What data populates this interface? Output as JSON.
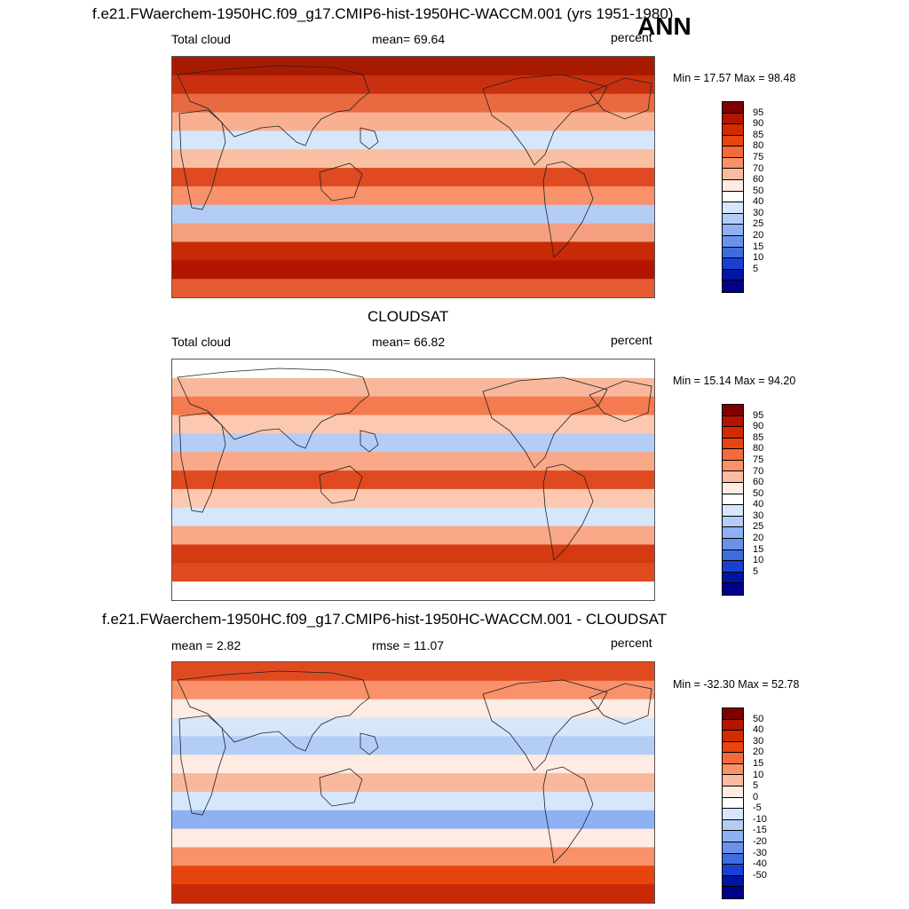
{
  "season": "ANN",
  "panels": [
    {
      "title": "f.e21.FWaerchem-1950HC.f09_g17.CMIP6-hist-1950HC-WACCM.001 (yrs 1951-1980)",
      "left_label": "Total cloud",
      "center_label": "mean=  69.64",
      "right_label": "percent",
      "minmax": "Min =  17.57 Max =  98.48",
      "colorbar": {
        "labels": [
          "95",
          "90",
          "85",
          "80",
          "75",
          "70",
          "60",
          "50",
          "40",
          "30",
          "25",
          "20",
          "15",
          "10",
          "5"
        ],
        "colors": [
          "#7f0000",
          "#b21400",
          "#d42a00",
          "#e8440e",
          "#f46a3a",
          "#f9916a",
          "#fcbba1",
          "#feebe2",
          "#ffffff",
          "#d6e6fb",
          "#b3cdf7",
          "#8db1f2",
          "#6a92ea",
          "#3e6de0",
          "#1a40d2",
          "#0015a6",
          "#00008b"
        ]
      },
      "map_bands": [
        "#a81a00",
        "#c93010",
        "#e86a40",
        "#f8b090",
        "#d6e6fb",
        "#f8c0a0",
        "#e04a20",
        "#f9916a",
        "#b3cdf7",
        "#f4a080",
        "#c82a08",
        "#b21400",
        "#e55a30"
      ]
    },
    {
      "title": "CLOUDSAT",
      "left_label": "Total cloud",
      "center_label": "mean=  66.82",
      "right_label": "percent",
      "minmax": "Min =  15.14 Max =  94.20",
      "colorbar": {
        "labels": [
          "95",
          "90",
          "85",
          "80",
          "75",
          "70",
          "60",
          "50",
          "40",
          "30",
          "25",
          "20",
          "15",
          "10",
          "5"
        ],
        "colors": [
          "#7f0000",
          "#b21400",
          "#d42a00",
          "#e8440e",
          "#f46a3a",
          "#f9916a",
          "#fcbba1",
          "#feebe2",
          "#ffffff",
          "#d6e6fb",
          "#b3cdf7",
          "#8db1f2",
          "#6a92ea",
          "#3e6de0",
          "#1a40d2",
          "#0015a6",
          "#00008b"
        ]
      },
      "map_bands": [
        "#ffffff",
        "#f9b89c",
        "#f47a50",
        "#fcc8b0",
        "#b3cdf7",
        "#f9a888",
        "#e04a20",
        "#fcc8b0",
        "#d6e6fb",
        "#f9a888",
        "#d63a10",
        "#e04a20",
        "#ffffff"
      ]
    },
    {
      "title": "f.e21.FWaerchem-1950HC.f09_g17.CMIP6-hist-1950HC-WACCM.001 - CLOUDSAT",
      "left_label": "mean =   2.82",
      "center_label": "rmse =  11.07",
      "right_label": "percent",
      "minmax": "Min = -32.30 Max =  52.78",
      "colorbar": {
        "labels": [
          "50",
          "40",
          "30",
          "20",
          "15",
          "10",
          "5",
          "0",
          "-5",
          "-10",
          "-15",
          "-20",
          "-30",
          "-40",
          "-50"
        ],
        "colors": [
          "#7f0000",
          "#b21400",
          "#d42a00",
          "#e8440e",
          "#f46a3a",
          "#f9916a",
          "#fcbba1",
          "#feebe2",
          "#ffffff",
          "#d6e6fb",
          "#b3cdf7",
          "#8db1f2",
          "#6a92ea",
          "#3e6de0",
          "#1a40d2",
          "#0015a6",
          "#00008b"
        ]
      },
      "map_bands": [
        "#e04a20",
        "#f9916a",
        "#feebe2",
        "#d6e6fb",
        "#b3cdf7",
        "#feebe2",
        "#f9b89c",
        "#d6e6fb",
        "#8db1f2",
        "#feebe2",
        "#f9916a",
        "#e8440e",
        "#c82a08"
      ]
    }
  ]
}
